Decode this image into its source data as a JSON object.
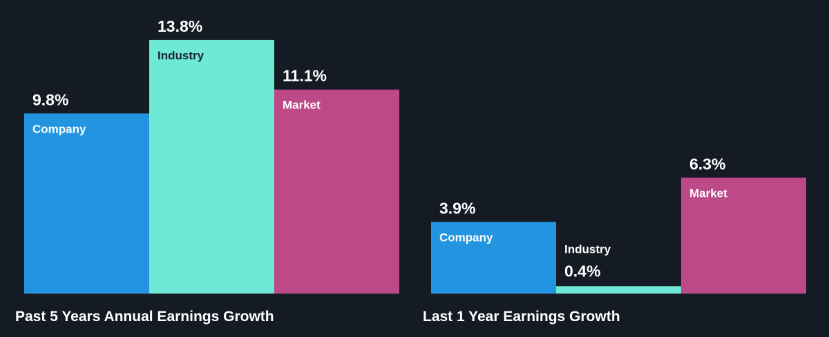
{
  "colors": {
    "background": "#151b24",
    "company": "#2394df",
    "industry": "#6ee9d5",
    "market": "#bd4a87",
    "baseline": "#2e3642",
    "text": "#ffffff",
    "industry_label_inside": "#1b2530"
  },
  "chart_data": [
    {
      "type": "bar",
      "title": "Past 5 Years Annual Earnings Growth",
      "categories": [
        "Company",
        "Industry",
        "Market"
      ],
      "values": [
        9.8,
        13.8,
        11.1
      ],
      "value_labels": [
        "9.8%",
        "13.8%",
        "11.1%"
      ],
      "unit": "%",
      "ylim": [
        0,
        14.5
      ],
      "grid": false,
      "legend": "none"
    },
    {
      "type": "bar",
      "title": "Last 1 Year Earnings Growth",
      "categories": [
        "Company",
        "Industry",
        "Market"
      ],
      "values": [
        3.9,
        0.4,
        6.3
      ],
      "value_labels": [
        "3.9%",
        "0.4%",
        "6.3%"
      ],
      "unit": "%",
      "ylim": [
        0,
        14.5
      ],
      "grid": false,
      "legend": "none"
    }
  ]
}
